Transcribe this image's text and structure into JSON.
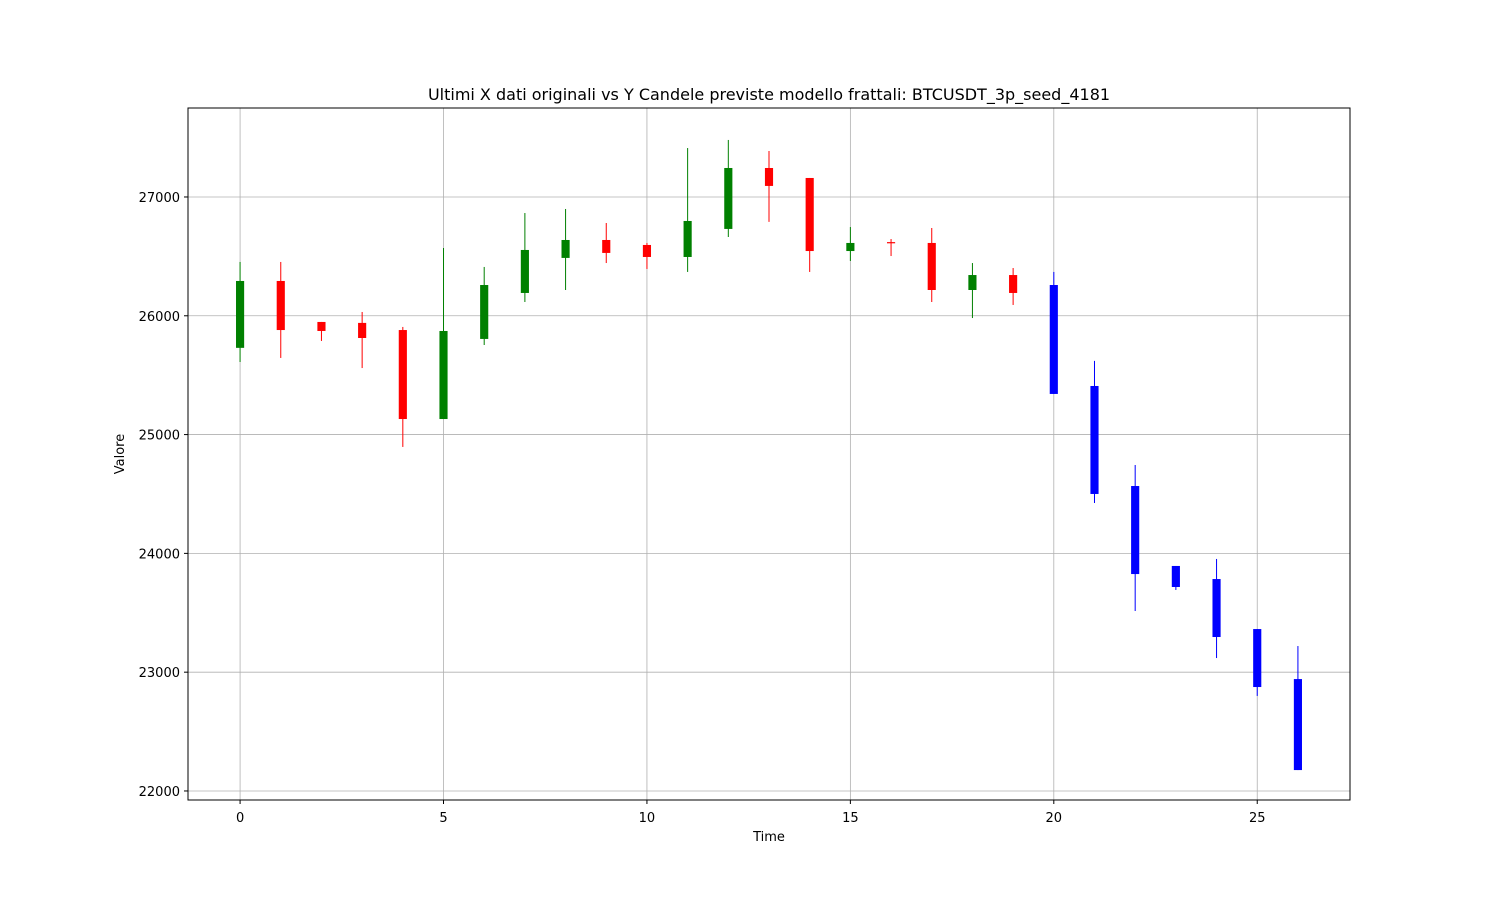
{
  "chart_data": {
    "type": "candlestick",
    "title": "Ultimi X dati originali vs Y Candele previste modello frattali: BTCUSDT_3p_seed_4181",
    "x_label": "Time",
    "y_label": "Valore",
    "x": [
      0,
      1,
      2,
      3,
      4,
      5,
      6,
      7,
      8,
      9,
      10,
      11,
      12,
      13,
      14,
      15,
      16,
      17,
      18,
      19,
      20,
      21,
      22,
      23,
      24,
      25,
      26
    ],
    "open": [
      25730,
      26293,
      25948,
      25940,
      25880,
      25131,
      25805,
      26192,
      26487,
      26638,
      26596,
      26495,
      26731,
      27244,
      27160,
      26545,
      26620,
      26613,
      26217,
      26343,
      26259,
      25409,
      24567,
      23894,
      23784,
      23363,
      22942
    ],
    "high": [
      26453,
      26453,
      25948,
      26032,
      25906,
      26571,
      26411,
      26865,
      26899,
      26781,
      26613,
      27412,
      27480,
      27387,
      27160,
      26747,
      26646,
      26739,
      26444,
      26402,
      26369,
      25620,
      24744,
      23894,
      23953,
      23363,
      23220
    ],
    "low": [
      25611,
      25645,
      25788,
      25560,
      24896,
      25131,
      25754,
      26116,
      26217,
      26444,
      26394,
      26369,
      26663,
      26790,
      26369,
      26461,
      26503,
      26116,
      25981,
      26091,
      25342,
      24424,
      23515,
      23692,
      23119,
      22800,
      22176
    ],
    "close": [
      26293,
      25880,
      25872,
      25813,
      25131,
      25872,
      26259,
      26554,
      26638,
      26529,
      26495,
      26798,
      27244,
      27093,
      26545,
      26613,
      26610,
      26217,
      26343,
      26192,
      25342,
      24500,
      23826,
      23717,
      23296,
      22875,
      22176
    ],
    "colors": [
      "green",
      "red",
      "red",
      "red",
      "red",
      "green",
      "green",
      "green",
      "green",
      "red",
      "red",
      "green",
      "green",
      "red",
      "red",
      "green",
      "red",
      "red",
      "green",
      "red",
      "blue",
      "blue",
      "blue",
      "blue",
      "blue",
      "blue",
      "blue"
    ],
    "xlim": [
      -1.28,
      27.28
    ],
    "ylim": [
      21924,
      27749
    ],
    "xticks": [
      0,
      5,
      10,
      15,
      20,
      25
    ],
    "yticks": [
      22000,
      23000,
      24000,
      25000,
      26000,
      27000
    ],
    "grid": true
  }
}
